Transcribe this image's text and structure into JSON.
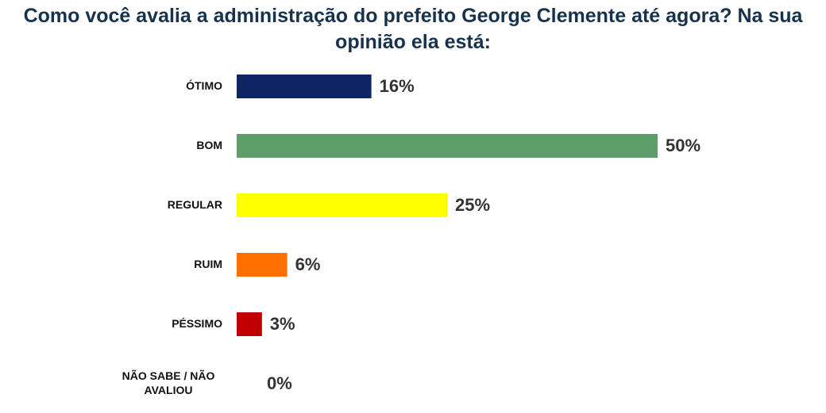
{
  "chart_data": {
    "type": "bar",
    "orientation": "horizontal",
    "title": "Como você avalia a administração do prefeito George Clemente até agora? Na sua opinião ela está:",
    "categories": [
      "ÓTIMO",
      "BOM",
      "REGULAR",
      "RUIM",
      "PÉSSIMO",
      "NÃO SABE / NÃO AVALIOU"
    ],
    "category_lines": [
      [
        "ÓTIMO"
      ],
      [
        "BOM"
      ],
      [
        "REGULAR"
      ],
      [
        "RUIM"
      ],
      [
        "PÉSSIMO"
      ],
      [
        "NÃO SABE / NÃO",
        "AVALIOU"
      ]
    ],
    "values": [
      16,
      50,
      25,
      6,
      3,
      0
    ],
    "value_labels": [
      "16%",
      "50%",
      "25%",
      "6%",
      "3%",
      "0%"
    ],
    "colors": [
      "#0d2563",
      "#5f9e68",
      "#ffff00",
      "#ff6f00",
      "#c00000",
      "#cccccc"
    ],
    "xlim": [
      0,
      50
    ],
    "grid": false,
    "legend": "none"
  }
}
